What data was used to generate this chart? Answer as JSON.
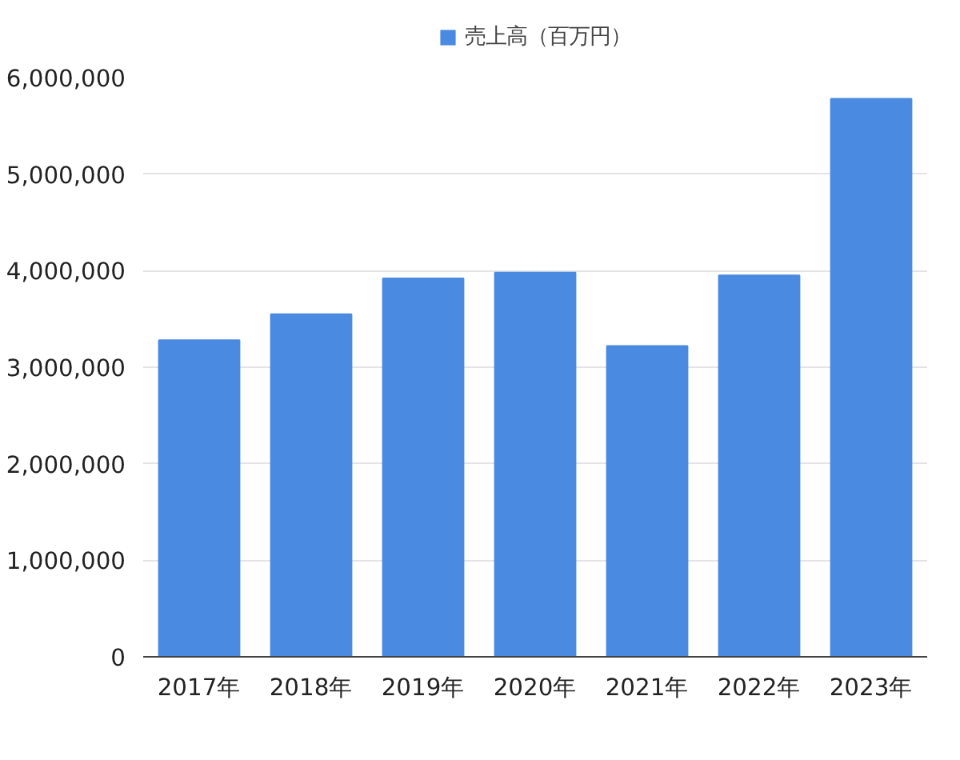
{
  "chart_data": {
    "type": "bar",
    "categories": [
      "2017年",
      "2018年",
      "2019年",
      "2020年",
      "2021年",
      "2022年",
      "2023年"
    ],
    "series": [
      {
        "name": "売上高（百万円）",
        "color": "#4a8ae0",
        "values": [
          3280000,
          3550000,
          3920000,
          3980000,
          3220000,
          3950000,
          5780000
        ]
      }
    ],
    "ylim": [
      0,
      6000000
    ],
    "yticks": [
      {
        "value": 0,
        "label": "0"
      },
      {
        "value": 1000000,
        "label": "1,000,000"
      },
      {
        "value": 2000000,
        "label": "2,000,000"
      },
      {
        "value": 3000000,
        "label": "3,000,000"
      },
      {
        "value": 4000000,
        "label": "4,000,000"
      },
      {
        "value": 5000000,
        "label": "5,000,000"
      },
      {
        "value": 6000000,
        "label": "6,000,000"
      }
    ],
    "grid": "y",
    "legend": "top"
  }
}
